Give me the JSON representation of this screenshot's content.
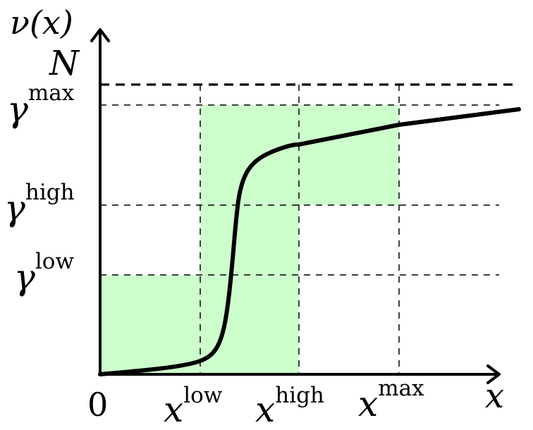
{
  "colors": {
    "region_fill": "#ccffcc",
    "curve": "#000000",
    "axes": "#000000",
    "guides": "#000000"
  },
  "labels": {
    "y_axis": "ν(x)",
    "x_axis": "x",
    "origin": "0",
    "N": "N",
    "gamma_symbol": "γ",
    "x_symbol": "x",
    "gamma_max_sup": "max",
    "gamma_high_sup": "high",
    "gamma_low_sup": "low",
    "x_low_sup": "low",
    "x_high_sup": "high",
    "x_max_sup": "max"
  }
}
